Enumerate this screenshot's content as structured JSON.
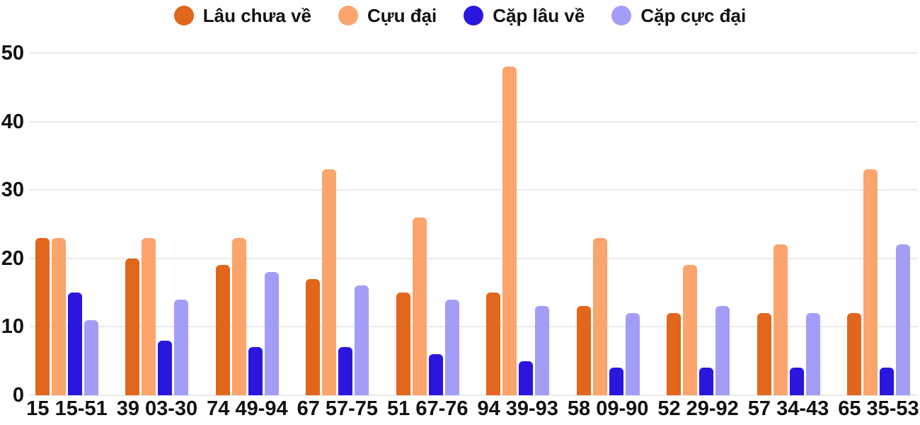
{
  "chart_data": {
    "type": "bar",
    "title": "",
    "categories": [
      "15 15-51",
      "39 03-30",
      "74 49-94",
      "67 57-75",
      "51 67-76",
      "94 39-93",
      "58 09-90",
      "52 29-92",
      "57 34-43",
      "65 35-53"
    ],
    "series": [
      {
        "name": "Lâu chưa về",
        "color": "#e2661b",
        "values": [
          23,
          20,
          19,
          17,
          15,
          15,
          13,
          12,
          12,
          12
        ]
      },
      {
        "name": "Cựu đại",
        "color": "#fba46c",
        "values": [
          23,
          23,
          23,
          33,
          26,
          48,
          23,
          19,
          22,
          33
        ]
      },
      {
        "name": "Cặp lâu về",
        "color": "#2a16dd",
        "values": [
          15,
          8,
          7,
          7,
          6,
          5,
          4,
          4,
          4,
          4
        ]
      },
      {
        "name": "Cặp cực đại",
        "color": "#a39df8",
        "values": [
          11,
          14,
          18,
          16,
          14,
          13,
          12,
          13,
          12,
          22
        ]
      }
    ],
    "xlabel": "",
    "ylabel": "",
    "ylim": [
      0,
      50
    ],
    "yticks": [
      0,
      10,
      20,
      30,
      40,
      50
    ],
    "grid": true,
    "legend_position": "top",
    "text_color": "#111111",
    "gridline_color": "#e9e9e9",
    "background_color": "#ffffff"
  }
}
